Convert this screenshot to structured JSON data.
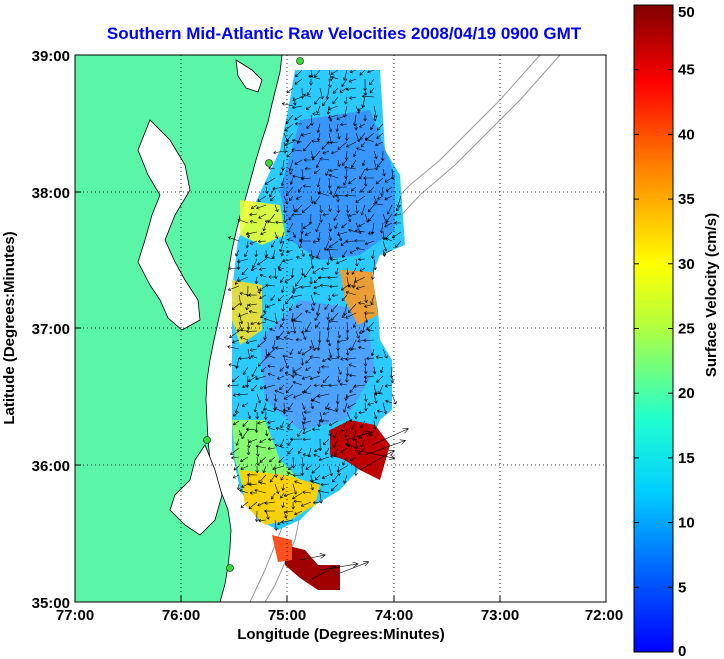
{
  "chart_data": {
    "type": "heatmap",
    "title": "Southern Mid-Atlantic Raw Velocities 2008/04/19 0900 GMT",
    "xlabel": "Longitude (Degrees:Minutes)",
    "ylabel": "Latitude (Degrees:Minutes)",
    "x_ticks": [
      "77:00",
      "76:00",
      "75:00",
      "74:00",
      "73:00",
      "72:00"
    ],
    "y_ticks": [
      "39:00",
      "38:00",
      "37:00",
      "36:00",
      "35:00"
    ],
    "xlim": [
      -77,
      -72
    ],
    "ylim": [
      35,
      39
    ],
    "grid": true,
    "colorbar": {
      "label": "Surface Velocity (cm/s)",
      "ticks": [
        "0",
        "5",
        "10",
        "15",
        "20",
        "25",
        "30",
        "35",
        "40",
        "45",
        "50"
      ],
      "range": [
        0,
        50
      ],
      "colormap": "jet"
    },
    "colors": {
      "land": "#5bf5a8",
      "title": "#0000ff",
      "arrows": "#000000",
      "grid": "#000000",
      "sites": "#33dd33"
    }
  }
}
